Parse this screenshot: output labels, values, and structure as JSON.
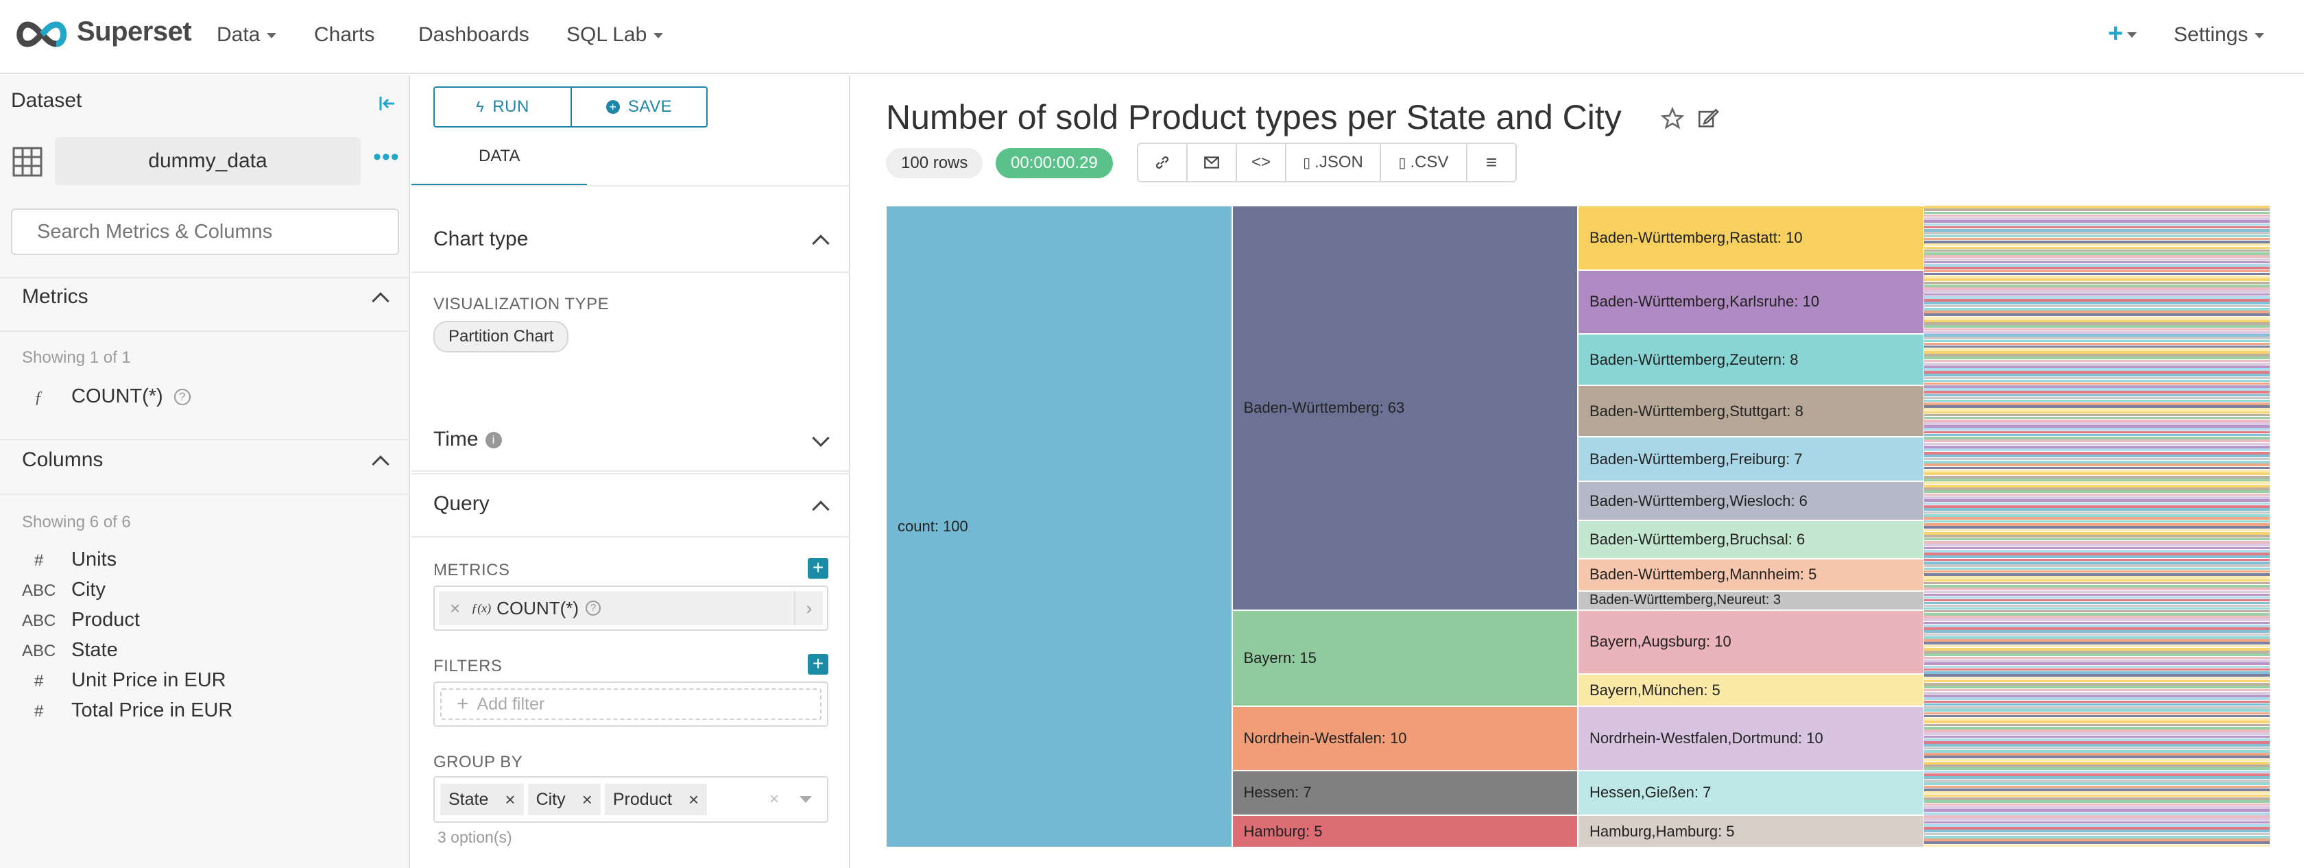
{
  "header": {
    "brand": "Superset",
    "nav": [
      "Data",
      "Charts",
      "Dashboards",
      "SQL Lab"
    ],
    "settings": "Settings"
  },
  "datasource": {
    "title": "Dataset",
    "name": "dummy_data",
    "search_placeholder": "Search Metrics & Columns",
    "metrics_header": "Metrics",
    "metrics_showing": "Showing 1 of 1",
    "metrics": [
      {
        "icon": "ƒ",
        "name": "COUNT(*)"
      }
    ],
    "columns_header": "Columns",
    "columns_showing": "Showing 6 of 6",
    "columns": [
      {
        "icon": "#",
        "name": "Units"
      },
      {
        "icon": "ABC",
        "name": "City"
      },
      {
        "icon": "ABC",
        "name": "Product"
      },
      {
        "icon": "ABC",
        "name": "State"
      },
      {
        "icon": "#",
        "name": "Unit Price in EUR"
      },
      {
        "icon": "#",
        "name": "Total Price in EUR"
      }
    ]
  },
  "controls": {
    "run_label": "RUN",
    "save_label": "SAVE",
    "tab_data": "DATA",
    "chart_type_header": "Chart type",
    "viz_type_label": "VISUALIZATION TYPE",
    "viz_type_value": "Partition Chart",
    "time_header": "Time",
    "query_header": "Query",
    "metrics_label": "METRICS",
    "metric_value": "COUNT(*)",
    "metric_prefix": "ƒ(x)",
    "filters_label": "FILTERS",
    "add_filter": "Add filter",
    "groupby_label": "GROUP BY",
    "groupby": [
      "State",
      "City",
      "Product"
    ],
    "options_count": "3 option(s)"
  },
  "chart": {
    "title": "Number of sold Product types per State and City",
    "rows_badge": "100 rows",
    "time_badge": "00:00:00.29",
    "json_label": ".JSON",
    "csv_label": ".CSV"
  },
  "chart_data": {
    "type": "partition",
    "title": "Number of sold Product types per State and City",
    "root": {
      "label": "count",
      "value": 100
    },
    "levels": [
      "State",
      "City",
      "Product"
    ],
    "states": [
      {
        "label": "Baden-Württemberg",
        "value": 63,
        "color": "#6b7294"
      },
      {
        "label": "Bayern",
        "value": 15,
        "color": "#8fcb9c"
      },
      {
        "label": "Nordrhein-Westfalen",
        "value": 10,
        "color": "#f19d77"
      },
      {
        "label": "Hessen",
        "value": 7,
        "color": "#808080"
      },
      {
        "label": "Hamburg",
        "value": 5,
        "color": "#dd6d75"
      }
    ],
    "cities": [
      {
        "label": "Baden-Württemberg,Rastatt",
        "value": 10,
        "color": "#f7d05f"
      },
      {
        "label": "Baden-Württemberg,Karlsruhe",
        "value": 10,
        "color": "#b08ac2"
      },
      {
        "label": "Baden-Württemberg,Zeutern",
        "value": 8,
        "color": "#89d4d4"
      },
      {
        "label": "Baden-Württemberg,Stuttgart",
        "value": 8,
        "color": "#b7a797"
      },
      {
        "label": "Baden-Württemberg,Freiburg",
        "value": 7,
        "color": "#a9d7e8"
      },
      {
        "label": "Baden-Württemberg,Wiesloch",
        "value": 6,
        "color": "#b5b9c7"
      },
      {
        "label": "Baden-Württemberg,Bruchsal",
        "value": 6,
        "color": "#c4e7cf"
      },
      {
        "label": "Baden-Württemberg,Mannheim",
        "value": 5,
        "color": "#f6c6ad"
      },
      {
        "label": "Baden-Württemberg,Neureut",
        "value": 3,
        "color": "#c4c4c4"
      },
      {
        "label": "Bayern,Augsburg",
        "value": 10,
        "color": "#ebb4ba"
      },
      {
        "label": "Bayern,München",
        "value": 5,
        "color": "#fbe9a7"
      },
      {
        "label": "Nordrhein-Westfalen,Dortmund",
        "value": 10,
        "color": "#d8c4e1"
      },
      {
        "label": "Hessen,Gießen",
        "value": 7,
        "color": "#bee8e8"
      },
      {
        "label": "Hamburg,Hamburg",
        "value": 5,
        "color": "#d8d0c8"
      }
    ],
    "root_color": "#74b9d3"
  },
  "colors": {
    "primary": "#20a7c9",
    "run_border": "#1f86a8",
    "success": "#5ac189"
  }
}
